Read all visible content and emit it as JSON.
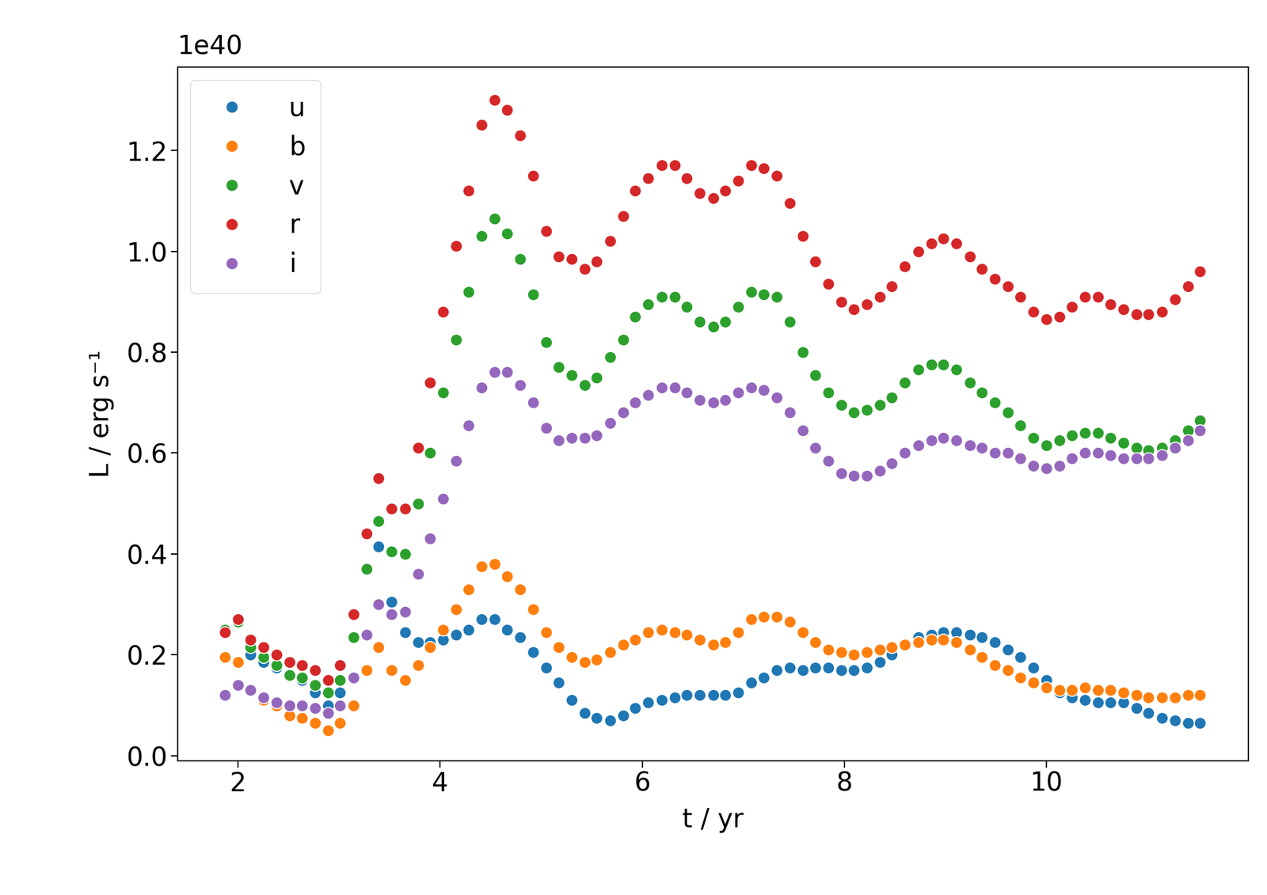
{
  "chart_data": {
    "type": "scatter",
    "x_label": "t / yr",
    "y_label": "L / erg s⁻¹",
    "annotations": [
      "1e40"
    ],
    "x": [
      1.87,
      2.0,
      2.12,
      2.25,
      2.38,
      2.51,
      2.63,
      2.76,
      2.89,
      3.01,
      3.14,
      3.27,
      3.39,
      3.52,
      3.65,
      3.78,
      3.9,
      4.03,
      4.16,
      4.28,
      4.41,
      4.54,
      4.66,
      4.79,
      4.92,
      5.05,
      5.17,
      5.3,
      5.43,
      5.55,
      5.68,
      5.81,
      5.93,
      6.06,
      6.19,
      6.32,
      6.44,
      6.57,
      6.7,
      6.82,
      6.95,
      7.08,
      7.2,
      7.33,
      7.46,
      7.59,
      7.71,
      7.84,
      7.97,
      8.09,
      8.22,
      8.35,
      8.47,
      8.6,
      8.73,
      8.86,
      8.98,
      9.11,
      9.24,
      9.36,
      9.49,
      9.62,
      9.74,
      9.87,
      10.0,
      10.13,
      10.25,
      10.38,
      10.51,
      10.63,
      10.76,
      10.89,
      11.01,
      11.14,
      11.27,
      11.4,
      11.52
    ],
    "series": [
      {
        "name": "u",
        "color": "#1f77b4",
        "values": [
          0.25,
          0.265,
          0.2,
          0.185,
          0.175,
          0.16,
          0.15,
          0.125,
          0.1,
          0.125,
          0.235,
          0.37,
          0.415,
          0.305,
          0.245,
          0.225,
          0.225,
          0.23,
          0.24,
          0.25,
          0.27,
          0.27,
          0.25,
          0.235,
          0.205,
          0.175,
          0.145,
          0.11,
          0.085,
          0.075,
          0.07,
          0.08,
          0.095,
          0.105,
          0.11,
          0.115,
          0.12,
          0.12,
          0.12,
          0.12,
          0.125,
          0.145,
          0.155,
          0.17,
          0.175,
          0.17,
          0.175,
          0.175,
          0.17,
          0.17,
          0.175,
          0.185,
          0.2,
          0.22,
          0.235,
          0.24,
          0.245,
          0.245,
          0.24,
          0.235,
          0.225,
          0.21,
          0.195,
          0.175,
          0.15,
          0.125,
          0.115,
          0.11,
          0.105,
          0.105,
          0.105,
          0.095,
          0.085,
          0.075,
          0.07,
          0.065,
          0.065
        ]
      },
      {
        "name": "b",
        "color": "#ff7f0e",
        "values": [
          0.195,
          0.185,
          0.13,
          0.11,
          0.1,
          0.08,
          0.075,
          0.065,
          0.05,
          0.065,
          0.1,
          0.17,
          0.215,
          0.17,
          0.15,
          0.18,
          0.215,
          0.25,
          0.29,
          0.33,
          0.375,
          0.38,
          0.355,
          0.33,
          0.29,
          0.245,
          0.215,
          0.195,
          0.185,
          0.19,
          0.205,
          0.22,
          0.23,
          0.245,
          0.25,
          0.245,
          0.24,
          0.23,
          0.22,
          0.225,
          0.245,
          0.27,
          0.275,
          0.275,
          0.265,
          0.245,
          0.225,
          0.21,
          0.205,
          0.2,
          0.205,
          0.21,
          0.215,
          0.22,
          0.225,
          0.23,
          0.23,
          0.225,
          0.21,
          0.195,
          0.18,
          0.17,
          0.155,
          0.145,
          0.135,
          0.13,
          0.13,
          0.135,
          0.13,
          0.13,
          0.125,
          0.12,
          0.115,
          0.115,
          0.115,
          0.12,
          0.12
        ]
      },
      {
        "name": "v",
        "color": "#2ca02c",
        "values": [
          0.25,
          0.265,
          0.215,
          0.195,
          0.18,
          0.16,
          0.155,
          0.14,
          0.125,
          0.15,
          0.235,
          0.37,
          0.465,
          0.405,
          0.4,
          0.5,
          0.6,
          0.72,
          0.825,
          0.92,
          1.03,
          1.065,
          1.035,
          0.985,
          0.915,
          0.82,
          0.77,
          0.755,
          0.735,
          0.75,
          0.79,
          0.825,
          0.87,
          0.895,
          0.91,
          0.91,
          0.89,
          0.86,
          0.85,
          0.86,
          0.89,
          0.92,
          0.915,
          0.91,
          0.86,
          0.8,
          0.755,
          0.72,
          0.695,
          0.68,
          0.685,
          0.695,
          0.71,
          0.74,
          0.765,
          0.775,
          0.775,
          0.765,
          0.74,
          0.72,
          0.7,
          0.68,
          0.655,
          0.63,
          0.615,
          0.625,
          0.635,
          0.64,
          0.64,
          0.63,
          0.62,
          0.61,
          0.605,
          0.61,
          0.625,
          0.645,
          0.665
        ]
      },
      {
        "name": "r",
        "color": "#d62728",
        "values": [
          0.245,
          0.27,
          0.23,
          0.215,
          0.2,
          0.185,
          0.18,
          0.17,
          0.15,
          0.18,
          0.28,
          0.44,
          0.55,
          0.49,
          0.49,
          0.61,
          0.74,
          0.88,
          1.01,
          1.12,
          1.25,
          1.3,
          1.28,
          1.23,
          1.15,
          1.04,
          0.99,
          0.985,
          0.965,
          0.98,
          1.02,
          1.07,
          1.12,
          1.145,
          1.17,
          1.17,
          1.145,
          1.115,
          1.105,
          1.12,
          1.14,
          1.17,
          1.165,
          1.15,
          1.095,
          1.03,
          0.98,
          0.935,
          0.9,
          0.885,
          0.895,
          0.91,
          0.93,
          0.97,
          1.0,
          1.015,
          1.025,
          1.015,
          0.99,
          0.965,
          0.945,
          0.93,
          0.91,
          0.88,
          0.865,
          0.87,
          0.89,
          0.91,
          0.91,
          0.895,
          0.885,
          0.875,
          0.875,
          0.88,
          0.905,
          0.93,
          0.96
        ]
      },
      {
        "name": "i",
        "color": "#9467bd",
        "values": [
          0.12,
          0.14,
          0.13,
          0.115,
          0.105,
          0.1,
          0.1,
          0.095,
          0.085,
          0.1,
          0.155,
          0.24,
          0.3,
          0.28,
          0.285,
          0.36,
          0.43,
          0.51,
          0.585,
          0.655,
          0.73,
          0.76,
          0.76,
          0.735,
          0.7,
          0.65,
          0.625,
          0.63,
          0.63,
          0.635,
          0.66,
          0.68,
          0.7,
          0.715,
          0.73,
          0.73,
          0.72,
          0.705,
          0.7,
          0.705,
          0.72,
          0.73,
          0.725,
          0.71,
          0.68,
          0.645,
          0.61,
          0.585,
          0.56,
          0.555,
          0.555,
          0.565,
          0.58,
          0.6,
          0.615,
          0.625,
          0.63,
          0.625,
          0.615,
          0.61,
          0.6,
          0.6,
          0.59,
          0.575,
          0.57,
          0.575,
          0.59,
          0.6,
          0.6,
          0.595,
          0.59,
          0.59,
          0.59,
          0.595,
          0.61,
          0.625,
          0.645
        ]
      }
    ],
    "xlim": [
      1.4,
      12.0
    ],
    "ylim": [
      -0.01,
      1.365
    ],
    "xticks": [
      2,
      4,
      6,
      8,
      10
    ],
    "yticks": [
      {
        "value": 0,
        "label": "0.0"
      },
      0.2,
      0.4,
      0.6,
      0.8,
      {
        "value": 1.0,
        "label": "1.0"
      },
      1.2
    ],
    "marker": "o",
    "legend": "upper left",
    "grid": false
  }
}
